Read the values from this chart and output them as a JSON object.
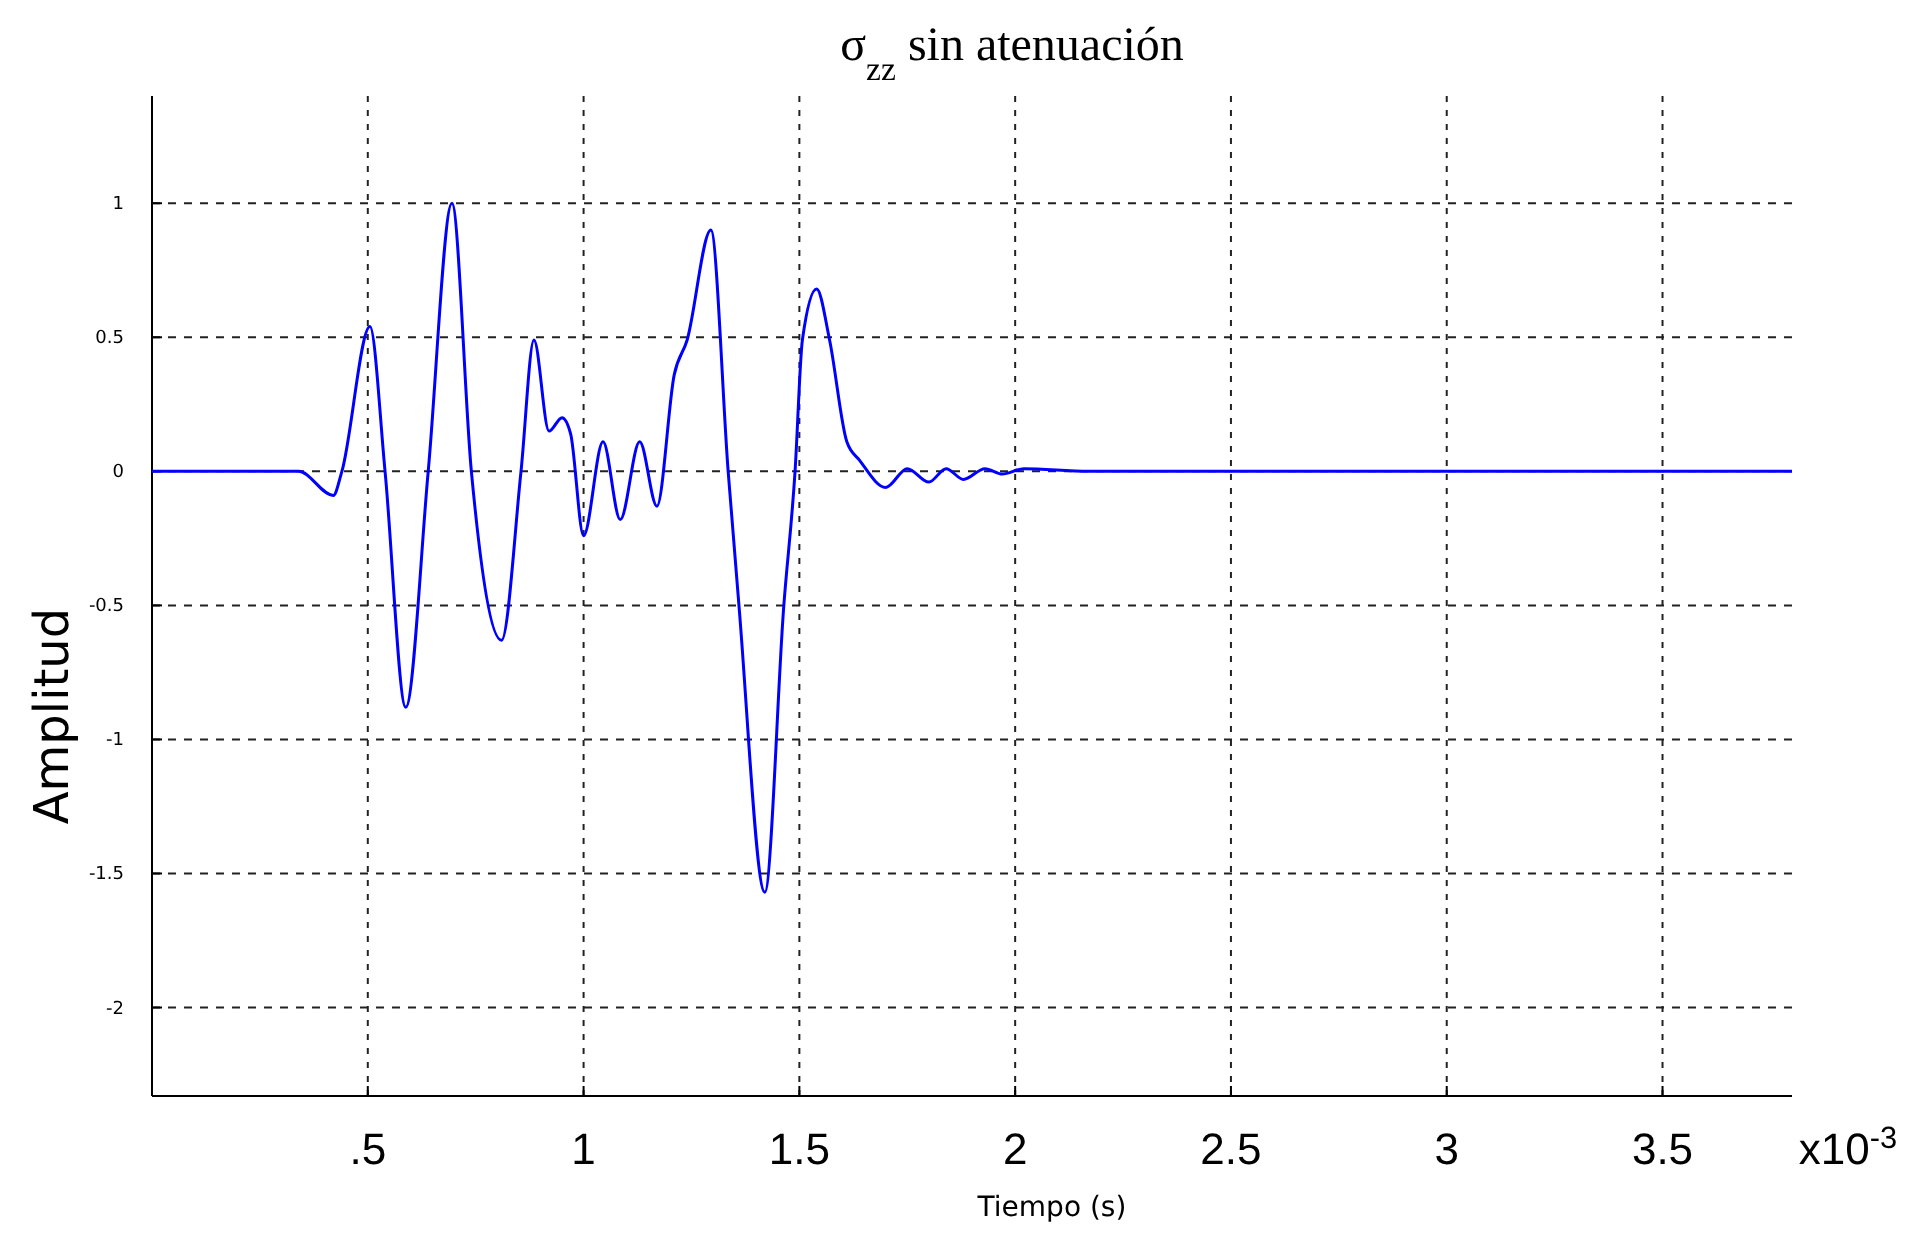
{
  "chart_data": {
    "type": "line",
    "title": "σ$_{zz}$ sin atenuación",
    "xlabel": "Tiempo (s)",
    "ylabel": "Amplitud",
    "annotations": [
      "x10$^{-3}$"
    ],
    "x": [
      0,
      0.34,
      0.42,
      0.44,
      0.505,
      0.54,
      0.588,
      0.64,
      0.695,
      0.74,
      0.81,
      0.855,
      0.885,
      0.92,
      0.95,
      0.97,
      1.0,
      1.045,
      1.085,
      1.13,
      1.17,
      1.21,
      1.24,
      1.295,
      1.335,
      1.36,
      1.42,
      1.464,
      1.49,
      1.507,
      1.54,
      1.57,
      1.61,
      1.64,
      1.7,
      1.75,
      1.8,
      1.84,
      1.88,
      1.93,
      1.97,
      2.02,
      2.17,
      3.8
    ],
    "series": [
      {
        "color": "#0000ff",
        "values": [
          0,
          0,
          -0.09,
          0,
          0.54,
          0,
          -0.88,
          0,
          1.0,
          0,
          -0.63,
          0,
          0.49,
          0.15,
          0.2,
          0.14,
          -0.24,
          0.11,
          -0.18,
          0.11,
          -0.13,
          0.36,
          0.49,
          0.9,
          0,
          -0.5,
          -1.57,
          -0.5,
          0,
          0.49,
          0.68,
          0.49,
          0.11,
          0.04,
          -0.06,
          0.01,
          -0.04,
          0.01,
          -0.03,
          0.01,
          -0.01,
          0.01,
          0,
          0
        ]
      }
    ],
    "xlim": [
      0,
      3.8
    ],
    "ylim": [
      -2.33,
      1.4
    ],
    "xticks": [
      {
        "value": 0.5,
        "label": ".5"
      },
      1,
      1.5,
      2,
      2.5,
      3,
      3.5
    ],
    "yticks": [
      -2,
      -1.5,
      -1,
      -0.5,
      0,
      0.5,
      1
    ],
    "grid": true,
    "line_style": "solid",
    "marker": "none"
  }
}
